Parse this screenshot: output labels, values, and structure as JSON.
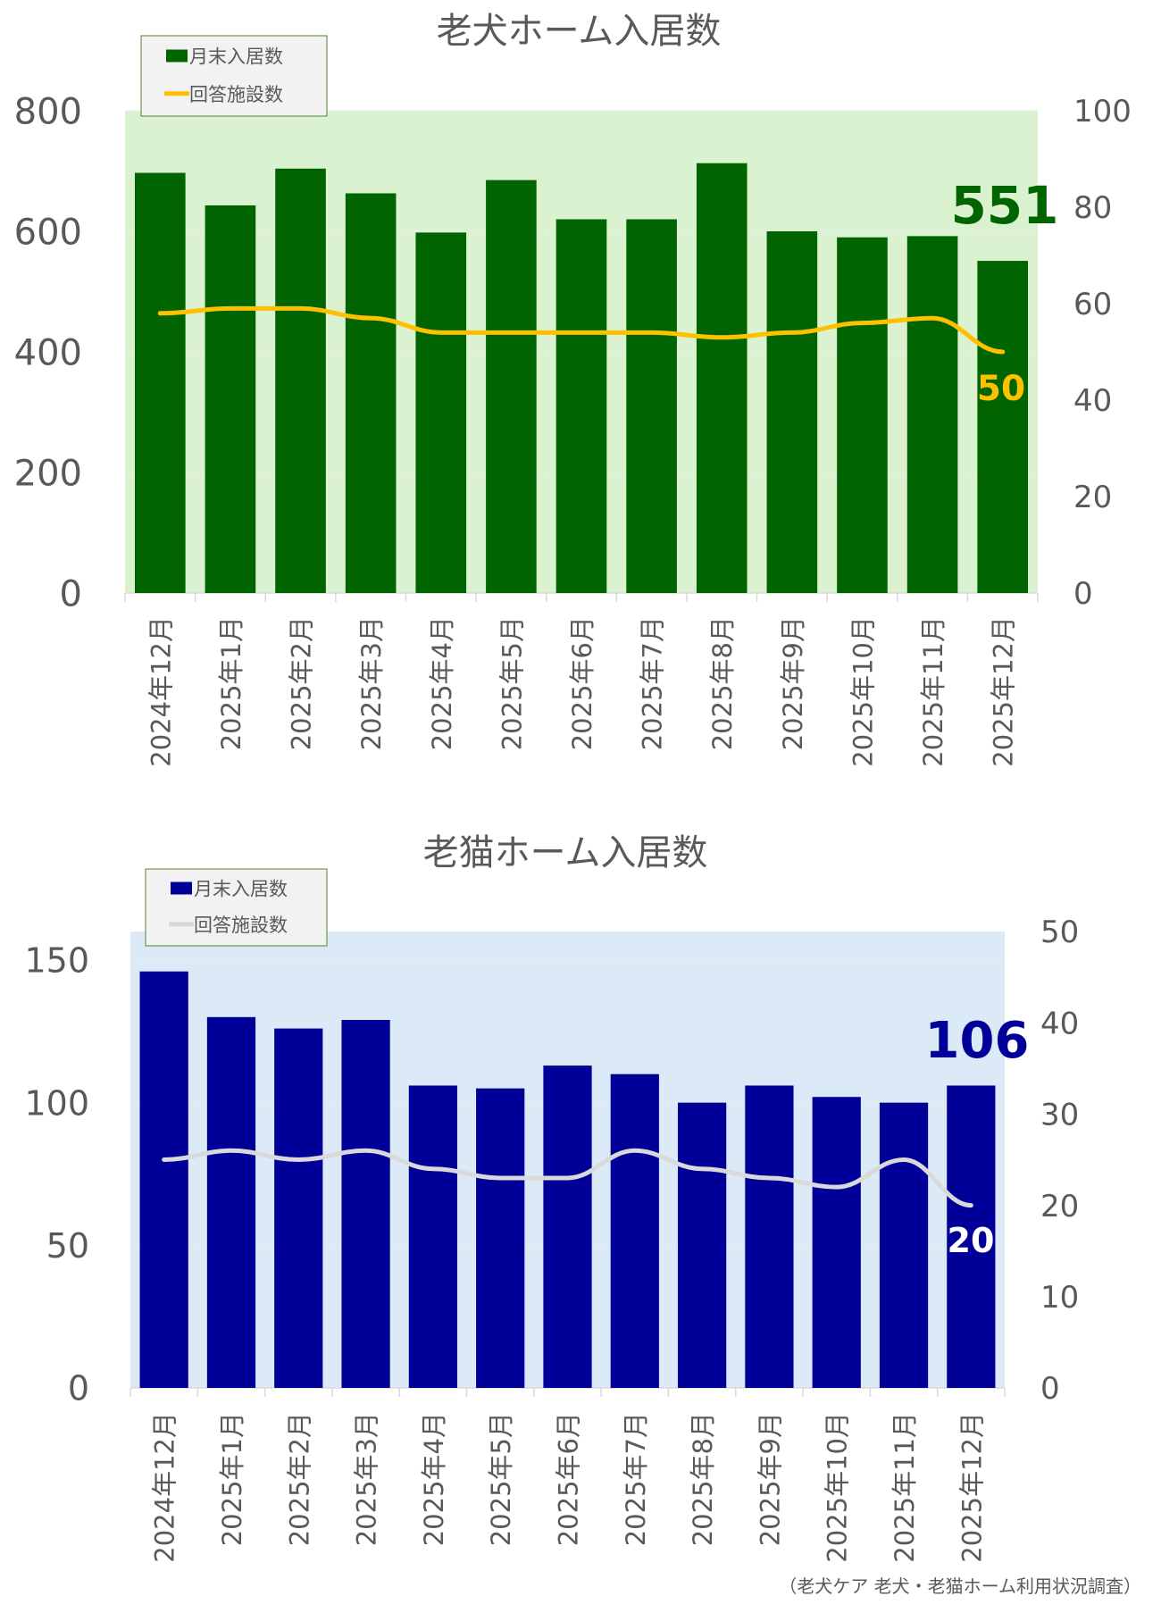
{
  "chart_data": [
    {
      "type": "bar+line",
      "title": "老犬ホーム入居数",
      "categories": [
        "2024年12月",
        "2025年1月",
        "2025年2月",
        "2025年3月",
        "2025年4月",
        "2025年5月",
        "2025年6月",
        "2025年7月",
        "2025年8月",
        "2025年9月",
        "2025年10月",
        "2025年11月",
        "2025年12月"
      ],
      "series": [
        {
          "name": "月末入居数",
          "type": "bar",
          "axis": "left",
          "color": "#006400",
          "values": [
            697,
            643,
            704,
            663,
            598,
            685,
            620,
            620,
            713,
            600,
            590,
            592,
            551
          ]
        },
        {
          "name": "回答施設数",
          "type": "line",
          "axis": "right",
          "color": "#FFC000",
          "values": [
            58,
            59,
            59,
            57,
            54,
            54,
            54,
            54,
            53,
            54,
            56,
            57,
            50
          ]
        }
      ],
      "ylim_left": [
        0,
        800
      ],
      "yticks_left": [
        0,
        200,
        400,
        600,
        800
      ],
      "ylim_right": [
        0,
        100
      ],
      "yticks_right": [
        0,
        20,
        40,
        60,
        80,
        100
      ],
      "plot_background": "#DAF2D0",
      "annotations": {
        "last_bar": "551",
        "last_line": "50"
      },
      "legend": "top-left",
      "grid": true
    },
    {
      "type": "bar+line",
      "title": "老猫ホーム入居数",
      "categories": [
        "2024年12月",
        "2025年1月",
        "2025年2月",
        "2025年3月",
        "2025年4月",
        "2025年5月",
        "2025年6月",
        "2025年7月",
        "2025年8月",
        "2025年9月",
        "2025年10月",
        "2025年11月",
        "2025年12月"
      ],
      "series": [
        {
          "name": "月末入居数",
          "type": "bar",
          "axis": "left",
          "color": "#000099",
          "values": [
            146,
            130,
            126,
            129,
            106,
            105,
            113,
            110,
            100,
            106,
            102,
            100,
            106
          ]
        },
        {
          "name": "回答施設数",
          "type": "line",
          "axis": "right",
          "color": "#D9D9D9",
          "values": [
            25,
            26,
            25,
            26,
            24,
            23,
            23,
            26,
            24,
            23,
            22,
            25,
            20
          ]
        }
      ],
      "ylim_left": [
        0,
        160
      ],
      "yticks_left": [
        0,
        50,
        100,
        150
      ],
      "ylim_right": [
        0,
        50
      ],
      "yticks_right": [
        0,
        10,
        20,
        30,
        40,
        50
      ],
      "plot_background": "#DCEAF7",
      "annotations": {
        "last_bar": "106",
        "last_line": "20"
      },
      "legend": "top-left",
      "grid": true
    }
  ],
  "source": "（老犬ケア 老犬・老猫ホーム利用状況調査）"
}
